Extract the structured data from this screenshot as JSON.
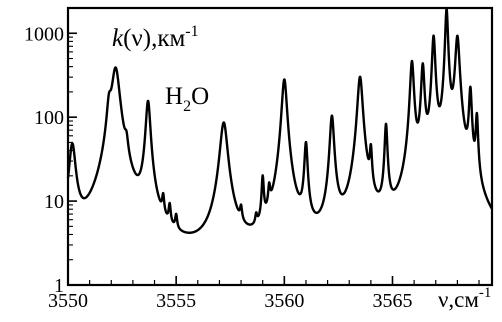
{
  "chart_data": {
    "type": "line",
    "title": "",
    "ylabel": {
      "prefix": "k",
      "middle": "(ν),км",
      "superscript": "-1"
    },
    "xlabel": {
      "prefix": "ν,",
      "middle": "см",
      "superscript": "-1"
    },
    "annotation": {
      "main": "H",
      "subscript": "2",
      "suffix": "O"
    },
    "xlim": [
      3550,
      3569.6
    ],
    "ylim": [
      1,
      2000
    ],
    "yscale": "log",
    "x_ticks": [
      3550,
      3555,
      3560,
      3565
    ],
    "y_ticks": [
      1,
      10,
      100,
      1000
    ],
    "y_tick_labels": [
      "1",
      "10",
      "100",
      "1000"
    ],
    "line_color": "#000000",
    "grid": false,
    "series": [
      {
        "baseline": 1.3,
        "lines": [
          {
            "nu": 3550.2,
            "peak": 45,
            "width": 0.14
          },
          {
            "nu": 3551.9,
            "peak": 95,
            "width": 0.1
          },
          {
            "nu": 3552.2,
            "peak": 380,
            "width": 0.18
          },
          {
            "nu": 3552.7,
            "peak": 22,
            "width": 0.08
          },
          {
            "nu": 3553.7,
            "peak": 150,
            "width": 0.1
          },
          {
            "nu": 3554.4,
            "peak": 6,
            "width": 0.05
          },
          {
            "nu": 3554.7,
            "peak": 5,
            "width": 0.05
          },
          {
            "nu": 3555.0,
            "peak": 3.5,
            "width": 0.05
          },
          {
            "nu": 3557.2,
            "peak": 85,
            "width": 0.16
          },
          {
            "nu": 3558.0,
            "peak": 4,
            "width": 0.05
          },
          {
            "nu": 3558.7,
            "peak": 3,
            "width": 0.05
          },
          {
            "nu": 3559.0,
            "peak": 15,
            "width": 0.05
          },
          {
            "nu": 3559.3,
            "peak": 8,
            "width": 0.05
          },
          {
            "nu": 3560.0,
            "peak": 280,
            "width": 0.11
          },
          {
            "nu": 3561.0,
            "peak": 45,
            "width": 0.07
          },
          {
            "nu": 3562.2,
            "peak": 100,
            "width": 0.09
          },
          {
            "nu": 3563.5,
            "peak": 300,
            "width": 0.11
          },
          {
            "nu": 3564.0,
            "peak": 30,
            "width": 0.05
          },
          {
            "nu": 3564.7,
            "peak": 75,
            "width": 0.06
          },
          {
            "nu": 3565.9,
            "peak": 450,
            "width": 0.08
          },
          {
            "nu": 3566.4,
            "peak": 400,
            "width": 0.07
          },
          {
            "nu": 3566.9,
            "peak": 900,
            "width": 0.07
          },
          {
            "nu": 3567.5,
            "peak": 1900,
            "width": 0.06
          },
          {
            "nu": 3568.0,
            "peak": 900,
            "width": 0.09
          },
          {
            "nu": 3568.6,
            "peak": 200,
            "width": 0.06
          },
          {
            "nu": 3568.9,
            "peak": 90,
            "width": 0.05
          }
        ]
      }
    ]
  }
}
